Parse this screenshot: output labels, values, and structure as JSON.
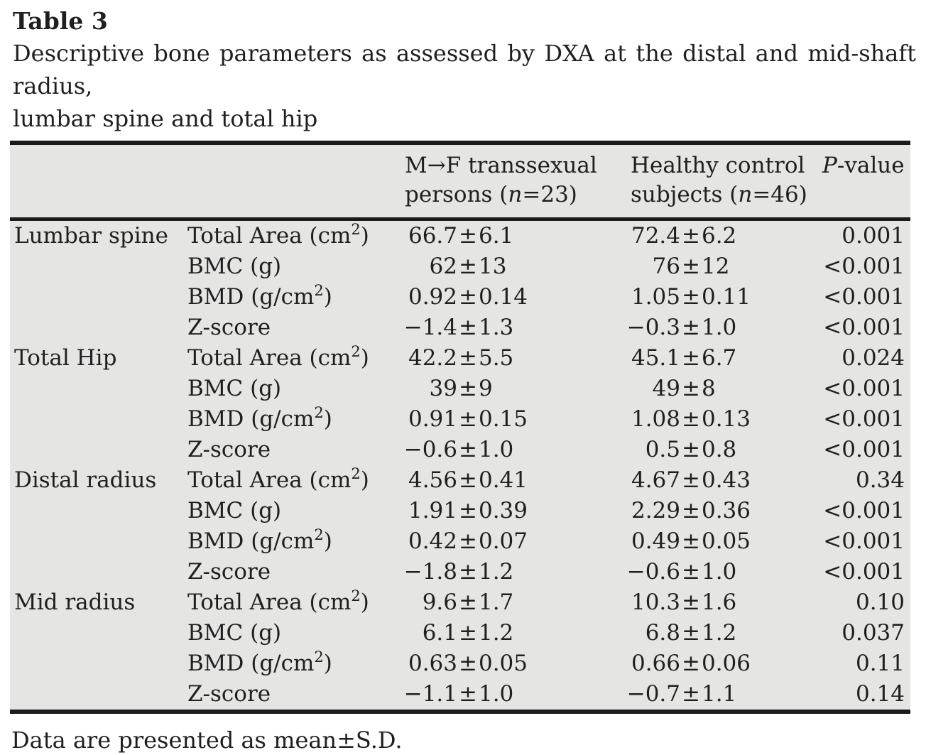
{
  "page": {
    "title": "Table 3",
    "caption_line1": "Descriptive bone parameters as assessed by DXA at the distal and mid-shaft radius,",
    "caption_line2": "lumbar spine and total hip",
    "footnote": "Data are presented as mean±S.D."
  },
  "table": {
    "headers": {
      "mf": {
        "line1": "M→F transsexual",
        "line2_pre": "persons (",
        "n_italic": "n",
        "line2_post": "=23)"
      },
      "hc": {
        "line1": "Healthy control",
        "line2_pre": "subjects (",
        "n_italic": "n",
        "line2_post": "=46)"
      },
      "p": {
        "italic": "P",
        "rest": "-value"
      }
    },
    "plus_minus": "±",
    "sections": [
      {
        "region": "Lumbar spine",
        "rows": [
          {
            "parameter": "Total Area (cm²)",
            "mf_mean": "66.7",
            "mf_sd": "6.1",
            "hc_mean": "72.4",
            "hc_sd": "6.2",
            "p": "0.001"
          },
          {
            "parameter": "BMC (g)",
            "mf_mean": "62",
            "mf_sd": "13",
            "hc_mean": "76",
            "hc_sd": "12",
            "p": "<0.001"
          },
          {
            "parameter": "BMD (g/cm²)",
            "mf_mean": "0.92",
            "mf_sd": "0.14",
            "hc_mean": "1.05",
            "hc_sd": "0.11",
            "p": "<0.001"
          },
          {
            "parameter": "Z-score",
            "mf_mean": "−1.4",
            "mf_sd": "1.3",
            "hc_mean": "−0.3",
            "hc_sd": "1.0",
            "p": "<0.001"
          }
        ]
      },
      {
        "region": "Total Hip",
        "rows": [
          {
            "parameter": "Total Area (cm²)",
            "mf_mean": "42.2",
            "mf_sd": "5.5",
            "hc_mean": "45.1",
            "hc_sd": "6.7",
            "p": "0.024"
          },
          {
            "parameter": "BMC (g)",
            "mf_mean": "39",
            "mf_sd": "9",
            "hc_mean": "49",
            "hc_sd": "8",
            "p": "<0.001"
          },
          {
            "parameter": "BMD (g/cm²)",
            "mf_mean": "0.91",
            "mf_sd": "0.15",
            "hc_mean": "1.08",
            "hc_sd": "0.13",
            "p": "<0.001"
          },
          {
            "parameter": "Z-score",
            "mf_mean": "−0.6",
            "mf_sd": "1.0",
            "hc_mean": "0.5",
            "hc_sd": "0.8",
            "p": "<0.001"
          }
        ]
      },
      {
        "region": "Distal radius",
        "rows": [
          {
            "parameter": "Total Area (cm²)",
            "mf_mean": "4.56",
            "mf_sd": "0.41",
            "hc_mean": "4.67",
            "hc_sd": "0.43",
            "p": "0.34"
          },
          {
            "parameter": "BMC (g)",
            "mf_mean": "1.91",
            "mf_sd": "0.39",
            "hc_mean": "2.29",
            "hc_sd": "0.36",
            "p": "<0.001"
          },
          {
            "parameter": "BMD (g/cm²)",
            "mf_mean": "0.42",
            "mf_sd": "0.07",
            "hc_mean": "0.49",
            "hc_sd": "0.05",
            "p": "<0.001"
          },
          {
            "parameter": "Z-score",
            "mf_mean": "−1.8",
            "mf_sd": "1.2",
            "hc_mean": "−0.6",
            "hc_sd": "1.0",
            "p": "<0.001"
          }
        ]
      },
      {
        "region": "Mid radius",
        "rows": [
          {
            "parameter": "Total Area (cm²)",
            "mf_mean": "9.6",
            "mf_sd": "1.7",
            "hc_mean": "10.3",
            "hc_sd": "1.6",
            "p": "0.10"
          },
          {
            "parameter": "BMC (g)",
            "mf_mean": "6.1",
            "mf_sd": "1.2",
            "hc_mean": "6.8",
            "hc_sd": "1.2",
            "p": "0.037"
          },
          {
            "parameter": "BMD (g/cm²)",
            "mf_mean": "0.63",
            "mf_sd": "0.05",
            "hc_mean": "0.66",
            "hc_sd": "0.06",
            "p": "0.11"
          },
          {
            "parameter": "Z-score",
            "mf_mean": "−1.1",
            "mf_sd": "1.0",
            "hc_mean": "−0.7",
            "hc_sd": "1.1",
            "p": "0.14"
          }
        ]
      }
    ]
  },
  "colors": {
    "table_background": "#e5e5e4",
    "rule": "#1b1b1b",
    "text": "#211e1f",
    "page_background": "#ffffff"
  }
}
